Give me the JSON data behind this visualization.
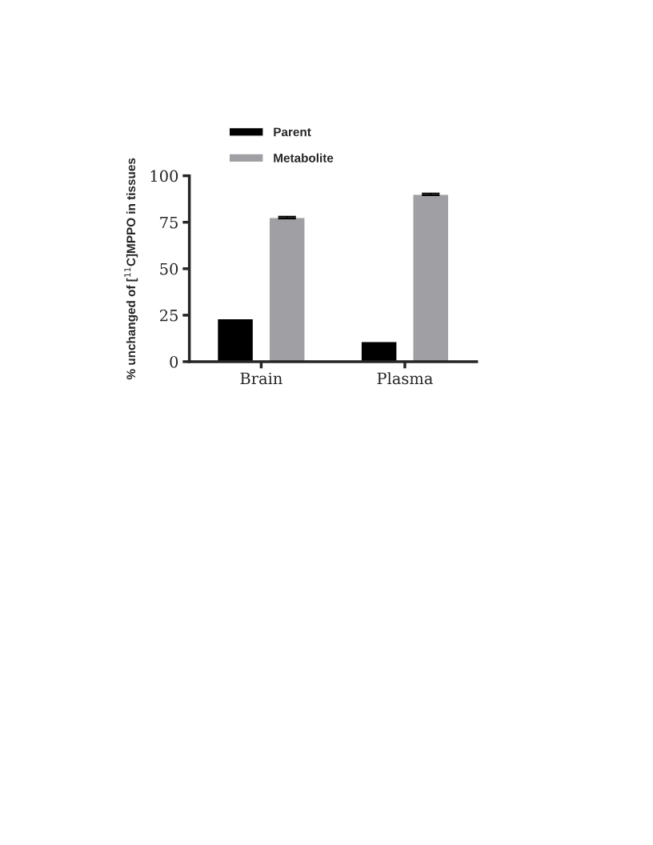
{
  "chart_data": {
    "type": "bar",
    "ylabel": "% unchanged of [$^{11}$C]MPPO in tissues",
    "categories": [
      "Brain",
      "Plasma"
    ],
    "series": [
      {
        "name": "Parent",
        "color": "#000000",
        "values": [
          23.1,
          10.8
        ]
      },
      {
        "name": "Metabolite",
        "color": "#a0a0a4",
        "values": [
          77.5,
          90.0
        ],
        "errors": [
          0.5,
          0.5
        ]
      }
    ],
    "ylim": [
      0,
      100
    ],
    "yticks": [
      0,
      25,
      50,
      75,
      100
    ],
    "grid": false,
    "legend": "top left"
  }
}
